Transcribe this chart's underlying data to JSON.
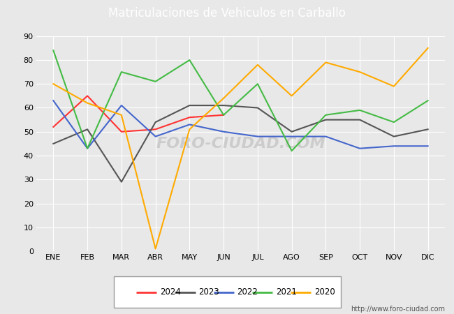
{
  "title": "Matriculaciones de Vehiculos en Carballo",
  "months": [
    "ENE",
    "FEB",
    "MAR",
    "ABR",
    "MAY",
    "JUN",
    "JUL",
    "AGO",
    "SEP",
    "OCT",
    "NOV",
    "DIC"
  ],
  "series": {
    "2024": {
      "color": "#ff3333",
      "data": [
        52,
        65,
        50,
        51,
        56,
        57,
        null,
        null,
        null,
        null,
        null,
        null
      ]
    },
    "2023": {
      "color": "#555555",
      "data": [
        45,
        51,
        29,
        54,
        61,
        61,
        60,
        50,
        55,
        55,
        48,
        51
      ]
    },
    "2022": {
      "color": "#4466cc",
      "data": [
        63,
        43,
        61,
        48,
        53,
        50,
        48,
        48,
        48,
        43,
        44,
        44
      ]
    },
    "2021": {
      "color": "#44bb44",
      "data": [
        84,
        43,
        75,
        71,
        80,
        57,
        70,
        42,
        57,
        59,
        54,
        63
      ]
    },
    "2020": {
      "color": "#ffaa00",
      "data": [
        70,
        62,
        57,
        1,
        51,
        64,
        78,
        65,
        79,
        75,
        69,
        85
      ]
    }
  },
  "ylim": [
    0,
    90
  ],
  "yticks": [
    0,
    10,
    20,
    30,
    40,
    50,
    60,
    70,
    80,
    90
  ],
  "plot_bg_color": "#e8e8e8",
  "title_bg_color": "#5577cc",
  "title_color": "#ffffff",
  "grid_color": "#ffffff",
  "watermark": "FORO-CIUDAD.COM",
  "url": "http://www.foro-ciudad.com",
  "legend_order": [
    "2024",
    "2023",
    "2022",
    "2021",
    "2020"
  ]
}
